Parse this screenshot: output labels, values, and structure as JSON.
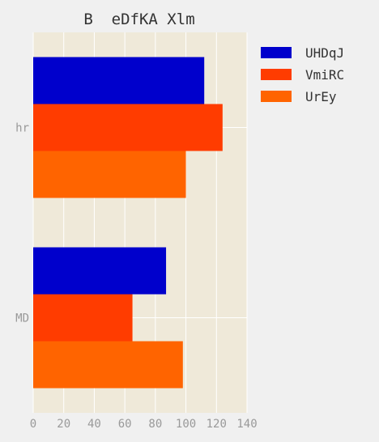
{
  "chart_data": {
    "type": "bar",
    "orientation": "horizontal",
    "title": "B  eDfKA Xlm",
    "categories": [
      "MD",
      "hr"
    ],
    "series": [
      {
        "name": "UHDqJ",
        "color": "#0000cc",
        "values": [
          87,
          112
        ]
      },
      {
        "name": "VmiRC",
        "color": "#ff3c00",
        "values": [
          65,
          124
        ]
      },
      {
        "name": "UrEy",
        "color": "#ff6400",
        "values": [
          98,
          100
        ]
      }
    ],
    "xlim": [
      0,
      140
    ],
    "xticks": [
      "0",
      "20",
      "40",
      "60",
      "80",
      "100",
      "120",
      "140"
    ],
    "xlabel": "",
    "ylabel": "",
    "grid": true,
    "legend_position": "top-right outside",
    "background": "#efe9d9",
    "grid_color": "#ffffff"
  }
}
